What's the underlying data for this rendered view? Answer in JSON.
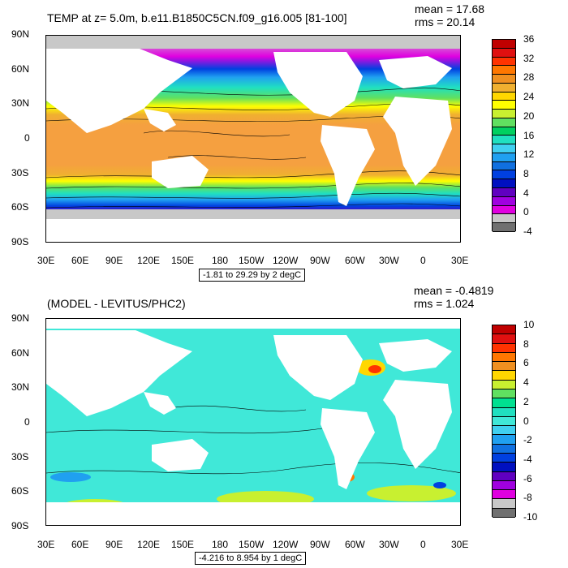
{
  "top": {
    "title": "TEMP at z=   5.0m, b.e11.B1850C5CN.f09_g16.005 [81-100]",
    "mean": "mean = 17.68",
    "rms": "rms = 20.14",
    "range_label": "-1.81 to 29.29 by 2 degC",
    "colorbar_labels": [
      "36",
      "32",
      "28",
      "24",
      "20",
      "16",
      "12",
      "8",
      "4",
      "0",
      "-4"
    ],
    "colorbar_colors": [
      "#c00000",
      "#e01010",
      "#ff3300",
      "#ff7700",
      "#f09020",
      "#f0b030",
      "#ffd700",
      "#ffff00",
      "#c8f030",
      "#60e060",
      "#00d060",
      "#20e0c0",
      "#40d0f0",
      "#20a0f0",
      "#1070e0",
      "#0040e0",
      "#0010c0",
      "#6000c0",
      "#a000e0",
      "#e000e0",
      "#c8c8c8",
      "#707070"
    ]
  },
  "bottom": {
    "title": "(MODEL - LEVITUS/PHC2)",
    "mean": "mean = -0.4819",
    "rms": "rms = 1.024",
    "range_label": "-4.216 to 8.954 by 1 degC",
    "colorbar_labels": [
      "10",
      "8",
      "6",
      "4",
      "2",
      "0",
      "-2",
      "-4",
      "-6",
      "-8",
      "-10"
    ],
    "colorbar_colors": [
      "#c00000",
      "#e01010",
      "#ff3300",
      "#ff7700",
      "#f09020",
      "#ffd700",
      "#c8f030",
      "#60e060",
      "#00e090",
      "#20e0c0",
      "#40e8d8",
      "#40d0f0",
      "#20a0f0",
      "#1070e0",
      "#0040e0",
      "#0010c0",
      "#6000c0",
      "#a000e0",
      "#e000e0",
      "#c8c8c8",
      "#707070"
    ]
  },
  "axes": {
    "lat_labels": [
      "90N",
      "60N",
      "30N",
      "0",
      "30S",
      "60S",
      "90S"
    ],
    "lon_labels": [
      "30E",
      "60E",
      "90E",
      "120E",
      "150E",
      "180",
      "150W",
      "120W",
      "90W",
      "60W",
      "30W",
      "0",
      "30E"
    ]
  },
  "colors": {
    "land": "#ffffff",
    "ice": "#c8c8c8",
    "warm": "#f5a040",
    "anomaly_base": "#40e8d8"
  }
}
